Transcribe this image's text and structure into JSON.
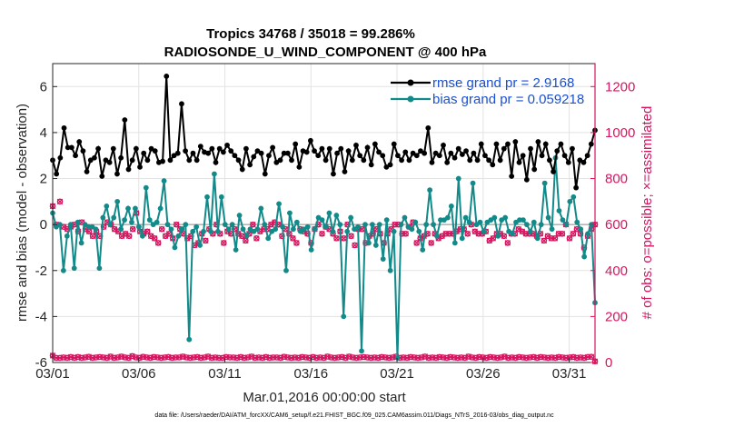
{
  "chart_data": {
    "type": "line",
    "title_line1": "Tropics 34768 / 35018 = 99.286%",
    "title_line2": "RADIOSONDE_U_WIND_COMPONENT @ 400 hPa",
    "xlabel": "Mar.01,2016 00:00:00 start",
    "ylabel_left": "rmse and bias (model - observation)",
    "ylabel_right": "# of obs: o=possible; ×=assimilated",
    "footnote": "data file: /Users/raeder/DAI/ATM_forcXX/CAM6_setup/f.e21.FHIST_BGC.f09_025.CAM6assim.011/Diags_NTrS_2016-03/obs_diag_output.nc",
    "xlim": [
      0,
      31.5
    ],
    "ylim_left": [
      -6,
      7
    ],
    "ylim_right": [
      0,
      1300
    ],
    "x_tick_values": [
      0,
      5,
      10,
      15,
      20,
      25,
      30
    ],
    "x_tick_labels": [
      "03/01",
      "03/06",
      "03/11",
      "03/16",
      "03/21",
      "03/26",
      "03/31"
    ],
    "y_left_ticks": [
      "-6",
      "-4",
      "-2",
      "0",
      "2",
      "4",
      "6"
    ],
    "y_right_ticks": [
      "0",
      "200",
      "400",
      "600",
      "800",
      "1000",
      "1200"
    ],
    "colors": {
      "rmse": "#000000",
      "bias": "#138a8a",
      "obs": "#d6145f",
      "zero": "#aaaaaa",
      "grid": "#e3e3e3"
    },
    "legend": {
      "rmse": "rmse grand pr = 2.9168",
      "bias": "bias grand pr = 0.059218",
      "position": "top-right"
    },
    "series": [
      {
        "name": "rmse",
        "axis": "left",
        "values": [
          2.8,
          2.2,
          2.9,
          4.2,
          3.35,
          3.35,
          3.0,
          3.6,
          3.2,
          2.3,
          2.8,
          2.9,
          3.3,
          2.1,
          2.8,
          2.7,
          3.3,
          2.2,
          2.9,
          4.55,
          2.4,
          2.8,
          3.3,
          2.5,
          3.1,
          2.8,
          3.3,
          3.2,
          2.7,
          2.75,
          6.45,
          2.8,
          3.0,
          3.1,
          5.25,
          3.2,
          2.8,
          3.1,
          2.8,
          3.4,
          3.15,
          3.1,
          3.3,
          2.7,
          3.3,
          3.15,
          3.45,
          3.2,
          3.0,
          2.8,
          2.4,
          3.3,
          2.6,
          2.95,
          3.2,
          3.1,
          2.2,
          3.0,
          3.35,
          2.7,
          2.8,
          3.1,
          3.1,
          2.8,
          3.5,
          2.5,
          3.2,
          3.15,
          3.65,
          3.2,
          3.0,
          3.3,
          2.8,
          3.3,
          2.2,
          3.1,
          3.3,
          2.3,
          3.2,
          2.8,
          3.45,
          3.0,
          2.8,
          3.35,
          2.6,
          3.5,
          3.15,
          3.0,
          2.5,
          2.6,
          3.5,
          3.0,
          2.8,
          3.15,
          2.8,
          3.1,
          3.0,
          3.2,
          3.1,
          4.2,
          2.7,
          3.1,
          3.0,
          3.45,
          2.7,
          3.1,
          2.9,
          3.3,
          3.05,
          3.2,
          2.8,
          3.1,
          2.8,
          3.5,
          3.0,
          2.8,
          2.6,
          3.5,
          2.8,
          3.3,
          3.5,
          2.1,
          3.6,
          2.7,
          3.0,
          1.95,
          3.3,
          2.4,
          3.6,
          3.0,
          3.5,
          2.8,
          2.3,
          3.2,
          3.5,
          3.0,
          2.7,
          3.3,
          1.6,
          2.8,
          2.7,
          3.0,
          3.5,
          4.1
        ]
      },
      {
        "name": "bias",
        "axis": "left",
        "values": [
          0.5,
          -0.1,
          0.0,
          -2.0,
          -0.5,
          0.0,
          -1.9,
          0.1,
          -0.8,
          0.0,
          -0.1,
          -0.1,
          -0.2,
          -1.9,
          0.3,
          0.8,
          0.0,
          0.3,
          1.0,
          -0.2,
          0.2,
          0.7,
          0.1,
          0.7,
          -0.1,
          -0.5,
          1.6,
          0.2,
          0.0,
          0.1,
          0.7,
          1.9,
          0.0,
          -0.2,
          -1.0,
          -0.5,
          -0.2,
          0.0,
          -5.0,
          -0.3,
          -0.1,
          -0.9,
          -0.3,
          1.2,
          -0.3,
          2.2,
          -0.3,
          1.2,
          0.0,
          -0.2,
          0.0,
          -1.1,
          0.4,
          -0.2,
          -0.5,
          -0.2,
          -0.3,
          -0.2,
          0.7,
          0.0,
          -0.6,
          -0.3,
          -0.2,
          0.9,
          -0.1,
          -2.0,
          0.5,
          -0.2,
          0.1,
          -0.3,
          -0.2,
          -0.1,
          -1.1,
          -0.2,
          0.3,
          0.2,
          -0.1,
          0.5,
          -0.3,
          0.4,
          0.0,
          -4.0,
          -0.3,
          0.3,
          -0.2,
          -0.1,
          -5.5,
          0.0,
          -0.8,
          0.0,
          -0.9,
          0.0,
          -1.5,
          0.2,
          -2.0,
          -0.3,
          -5.8,
          0.0,
          0.3,
          -0.1,
          -0.2,
          0.1,
          -0.3,
          -1.1,
          0.0,
          1.5,
          0.0,
          -0.5,
          0.2,
          0.2,
          0.3,
          0.8,
          -0.8,
          2.0,
          -0.6,
          0.3,
          0.1,
          1.8,
          0.0,
          0.1,
          -0.3,
          0.1,
          0.2,
          0.3,
          -0.5,
          0.2,
          0.3,
          -0.3,
          -0.4,
          0.1,
          0.2,
          0.2,
          0.0,
          -0.3,
          0.1,
          -0.6,
          0.0,
          1.8,
          0.3,
          -0.2,
          2.9,
          0.6,
          0.2,
          0.0,
          1.0,
          1.2,
          0.1,
          -0.2,
          -1.4,
          -0.4,
          0.0,
          -3.4
        ]
      },
      {
        "name": "obs_possible",
        "axis": "right",
        "values": [
          680,
          600,
          700,
          590,
          580,
          590,
          600,
          570,
          610,
          580,
          570,
          550,
          570,
          550,
          590,
          610,
          600,
          580,
          570,
          550,
          560,
          550,
          580,
          650,
          570,
          560,
          570,
          550,
          540,
          520,
          580,
          550,
          560,
          540,
          600,
          580,
          560,
          540,
          550,
          510,
          520,
          560,
          530,
          580,
          560,
          600,
          560,
          520,
          570,
          560,
          580,
          560,
          550,
          530,
          560,
          600,
          540,
          570,
          580,
          580,
          600,
          610,
          600,
          550,
          580,
          560,
          540,
          520,
          580,
          570,
          560,
          520,
          580,
          600,
          560,
          590,
          580,
          560,
          540,
          570,
          540,
          600,
          550,
          510,
          580,
          580,
          520,
          550,
          560,
          580,
          560,
          520,
          560,
          580,
          600,
          600,
          560,
          560,
          590,
          610,
          520,
          540,
          550,
          560,
          520,
          560,
          540,
          550,
          560,
          560,
          560,
          570,
          580,
          580,
          560,
          600,
          570,
          560,
          560,
          570,
          530,
          540,
          560,
          560,
          550,
          520,
          560,
          560,
          580,
          570,
          560,
          560,
          560,
          550,
          560,
          530,
          550,
          540,
          540,
          560,
          560,
          600,
          540,
          560,
          580,
          560,
          500,
          550,
          580,
          600
        ]
      },
      {
        "name": "obs_assimilated",
        "axis": "right",
        "values": [
          30,
          20,
          20,
          22,
          20,
          24,
          20,
          24,
          20,
          22,
          25,
          20,
          22,
          24,
          22,
          20,
          26,
          20,
          22,
          26,
          22,
          20,
          28,
          22,
          20,
          25,
          22,
          20,
          24,
          22,
          20,
          22,
          24,
          20,
          22,
          22,
          26,
          22,
          20,
          22,
          24,
          20,
          22,
          26,
          20,
          22,
          20,
          20,
          24,
          22,
          22,
          20,
          24,
          20,
          22,
          26,
          20,
          22,
          20,
          24,
          20,
          22,
          22,
          20,
          25,
          22,
          20,
          22,
          20,
          24,
          22,
          20,
          24,
          20,
          22,
          20,
          26,
          22,
          20,
          22,
          24,
          20,
          26,
          22,
          20,
          22,
          24,
          22,
          20,
          22,
          20,
          24,
          22,
          20,
          22,
          26,
          20,
          22,
          20,
          24,
          22,
          20,
          22,
          26,
          20,
          22,
          20,
          24,
          22,
          20,
          24,
          22,
          20,
          22,
          20,
          26,
          22,
          20,
          24,
          22,
          20,
          24,
          22,
          20,
          22,
          26,
          20,
          22,
          20,
          24,
          22,
          20,
          22,
          24,
          20,
          24,
          22,
          20,
          22,
          20,
          24,
          22,
          20,
          22,
          24,
          20,
          22,
          20,
          24,
          25,
          5
        ]
      }
    ]
  }
}
